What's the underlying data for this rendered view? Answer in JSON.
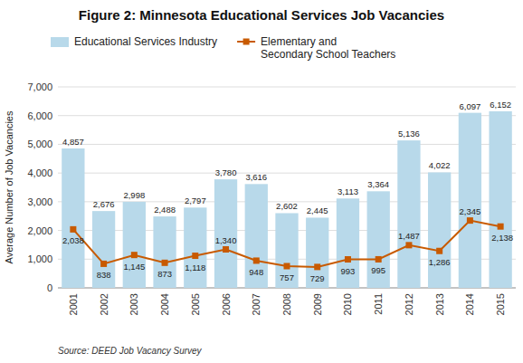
{
  "chart_data": {
    "type": "bar",
    "title": "Figure 2: Minnesota Educational Services Job Vacancies",
    "categories": [
      "2001",
      "2002",
      "2003",
      "2004",
      "2005",
      "2006",
      "2007",
      "2008",
      "2009",
      "2010",
      "2011",
      "2012",
      "2013",
      "2014",
      "2015"
    ],
    "series": [
      {
        "name": "Educational Services Industry",
        "type": "bar",
        "color": "#b8d9ea",
        "values": [
          4857,
          2676,
          2998,
          2488,
          2797,
          3780,
          3616,
          2602,
          2445,
          3113,
          3364,
          5136,
          4022,
          6097,
          6152
        ],
        "value_labels": [
          "4,857",
          "2,676",
          "2,998",
          "2,488",
          "2,797",
          "3,780",
          "3,616",
          "2,602",
          "2,445",
          "3,113",
          "3,364",
          "5,136",
          "4,022",
          "6,097",
          "6,152"
        ]
      },
      {
        "name": "Elementary and\nSecondary School Teachers",
        "type": "line",
        "color": "#c85a00",
        "marker": "square",
        "values": [
          2038,
          838,
          1145,
          873,
          1118,
          1340,
          948,
          757,
          729,
          993,
          995,
          1487,
          1286,
          2345,
          2138
        ],
        "value_labels": [
          "2,038",
          "838",
          "1,145",
          "873",
          "1,118",
          "1,340",
          "948",
          "757",
          "729",
          "993",
          "995",
          "1,487",
          "1,286",
          "2,345",
          "2,138"
        ]
      }
    ],
    "ylabel": "Average Number of Job Vacancies",
    "ylim": [
      0,
      7000
    ],
    "yticks": [
      0,
      {
        "value": 1000,
        "label": "1,000"
      },
      {
        "value": 2000,
        "label": "2,000"
      },
      {
        "value": 3000,
        "label": "3,000"
      },
      {
        "value": 4000,
        "label": "4,000"
      },
      {
        "value": 5000,
        "label": "5,000"
      },
      {
        "value": 6000,
        "label": "6,000"
      },
      {
        "value": 7000,
        "label": "7,000"
      }
    ],
    "grid": true,
    "legend": "upper left",
    "data_labels": true,
    "annotations": [
      "Source: DEED Job Vacancy Survey"
    ]
  }
}
